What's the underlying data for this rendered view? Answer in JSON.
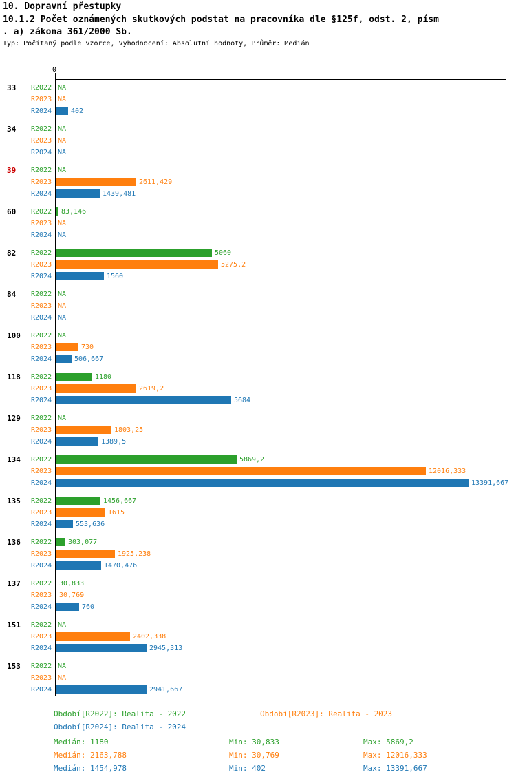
{
  "title": "10. Dopravní přestupky",
  "subtitle1": "10.1.2 Počet oznámených skutkových podstat na pracovníka dle §125f, odst. 2, písm",
  "subtitle2": ". a) zákona 361/2000 Sb.",
  "meta": "Typ: Počítaný podle vzorce, Vyhodnocení: Absolutní hodnoty, Průměr: Medián",
  "colors": {
    "r2022": "#2ca02c",
    "r2023": "#ff7f0e",
    "r2024": "#1f77b4",
    "highlight": "#cc0000",
    "axis": "#000000"
  },
  "chart_data": {
    "type": "bar",
    "orientation": "horizontal",
    "title": "10.1.2 Počet oznámených skutkových podstat na pracovníka dle §125f, odst. 2, písm. a) zákona 361/2000 Sb.",
    "xlim": [
      0,
      13391.667
    ],
    "axis_zero_label": "0",
    "series_labels": [
      "R2022",
      "R2023",
      "R2024"
    ],
    "series_keys": [
      "r2022",
      "r2023",
      "r2024"
    ],
    "legend_position": "bottom",
    "grid": "median-lines-only",
    "medians": {
      "r2022": 1180,
      "r2023": 2163.788,
      "r2024": 1454.978
    },
    "rows": [
      {
        "category": "33",
        "highlight": false,
        "labels": [
          "NA",
          "NA",
          "402"
        ],
        "values": [
          null,
          null,
          402
        ]
      },
      {
        "category": "34",
        "highlight": false,
        "labels": [
          "NA",
          "NA",
          "NA"
        ],
        "values": [
          null,
          null,
          null
        ]
      },
      {
        "category": "39",
        "highlight": true,
        "labels": [
          "NA",
          "2611,429",
          "1439,481"
        ],
        "values": [
          null,
          2611.429,
          1439.481
        ]
      },
      {
        "category": "60",
        "highlight": false,
        "labels": [
          "83,146",
          "NA",
          "NA"
        ],
        "values": [
          83.146,
          null,
          null
        ]
      },
      {
        "category": "82",
        "highlight": false,
        "labels": [
          "5060",
          "5275,2",
          "1560"
        ],
        "values": [
          5060,
          5275.2,
          1560
        ]
      },
      {
        "category": "84",
        "highlight": false,
        "labels": [
          "NA",
          "NA",
          "NA"
        ],
        "values": [
          null,
          null,
          null
        ]
      },
      {
        "category": "100",
        "highlight": false,
        "labels": [
          "NA",
          "730",
          "506,667"
        ],
        "values": [
          null,
          730,
          506.667
        ]
      },
      {
        "category": "118",
        "highlight": false,
        "labels": [
          "1180",
          "2619,2",
          "5684"
        ],
        "values": [
          1180,
          2619.2,
          5684
        ]
      },
      {
        "category": "129",
        "highlight": false,
        "labels": [
          "NA",
          "1803,25",
          "1389,5"
        ],
        "values": [
          null,
          1803.25,
          1389.5
        ]
      },
      {
        "category": "134",
        "highlight": false,
        "labels": [
          "5869,2",
          "12016,333",
          "13391,667"
        ],
        "values": [
          5869.2,
          12016.333,
          13391.667
        ]
      },
      {
        "category": "135",
        "highlight": false,
        "labels": [
          "1456,667",
          "1615",
          "553,636"
        ],
        "values": [
          1456.667,
          1615,
          553.636
        ]
      },
      {
        "category": "136",
        "highlight": false,
        "labels": [
          "303,077",
          "1925,238",
          "1470,476"
        ],
        "values": [
          303.077,
          1925.238,
          1470.476
        ]
      },
      {
        "category": "137",
        "highlight": false,
        "labels": [
          "30,833",
          "30,769",
          "760"
        ],
        "values": [
          30.833,
          30.769,
          760
        ]
      },
      {
        "category": "151",
        "highlight": false,
        "labels": [
          "NA",
          "2402,338",
          "2945,313"
        ],
        "values": [
          null,
          2402.338,
          2945.313
        ]
      },
      {
        "category": "153",
        "highlight": false,
        "labels": [
          "NA",
          "NA",
          "2941,667"
        ],
        "values": [
          null,
          null,
          2941.667
        ]
      }
    ]
  },
  "legend": [
    {
      "key": "r2022",
      "label": "Období[R2022]: Realita - 2022"
    },
    {
      "key": "r2023",
      "label": "Období[R2023]: Realita - 2023"
    },
    {
      "key": "r2024",
      "label": "Období[R2024]: Realita - 2024"
    }
  ],
  "stats": [
    {
      "key": "r2022",
      "median": "Medián: 1180",
      "min": "Min: 30,833",
      "max": "Max: 5869,2"
    },
    {
      "key": "r2023",
      "median": "Medián: 2163,788",
      "min": "Min: 30,769",
      "max": "Max: 12016,333"
    },
    {
      "key": "r2024",
      "median": "Medián: 1454,978",
      "min": "Min: 402",
      "max": "Max: 13391,667"
    }
  ]
}
